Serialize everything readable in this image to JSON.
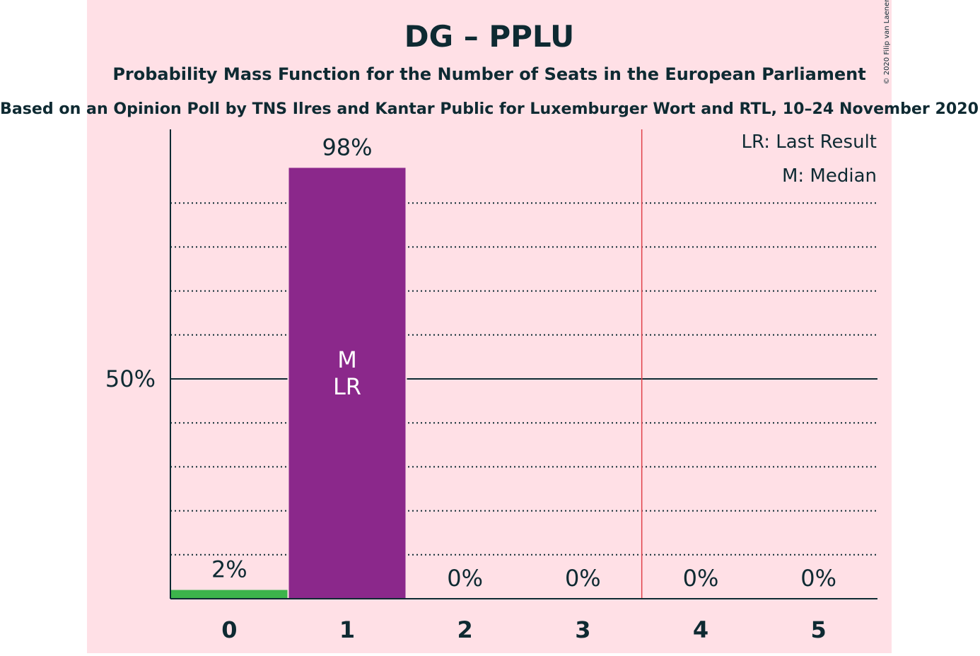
{
  "colors": {
    "panel_bg": "#ffe0e6",
    "text": "#0e2a32",
    "bar_party": "#8b288b",
    "bar_low": "#3cb44b",
    "last_result_line": "#e0404a",
    "axis": "#0e2a32"
  },
  "chart_data": {
    "type": "bar",
    "title": "DG – PPLU",
    "subtitle": "Probability Mass Function for the Number of Seats in the European Parliament",
    "source_line": "Based on an Opinion Poll by TNS Ilres and Kantar Public for Luxemburger Wort and RTL, 10–24 November 2020",
    "copyright": "© 2020 Filip van Laenen",
    "categories": [
      "0",
      "1",
      "2",
      "3",
      "4",
      "5"
    ],
    "values": [
      2,
      98,
      0,
      0,
      0,
      0
    ],
    "value_labels": [
      "2%",
      "98%",
      "0%",
      "0%",
      "0%",
      "0%"
    ],
    "ylim": [
      0,
      100
    ],
    "y_tick_value": 50,
    "y_tick_label": "50%",
    "grid": "dotted every 10%",
    "median_seats": 1,
    "last_result_seats": 1,
    "bar_markers": {
      "1": [
        "M",
        "LR"
      ]
    },
    "last_result_line_between": [
      3,
      4
    ],
    "legend": {
      "placement": "top-right",
      "entries": [
        "LR: Last Result",
        "M: Median"
      ]
    }
  }
}
